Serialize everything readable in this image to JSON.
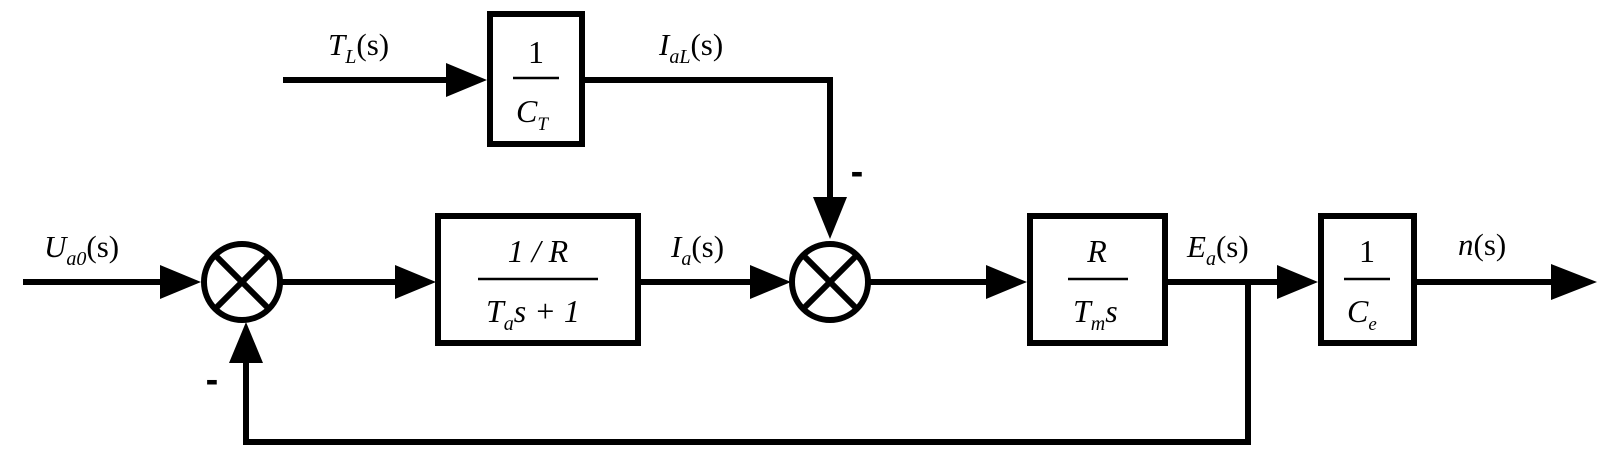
{
  "signals": {
    "input": "U",
    "input_sub": "a0",
    "load_torque": "T",
    "load_torque_sub": "L",
    "load_current": "I",
    "load_current_sub": "aL",
    "armature_current": "I",
    "armature_current_sub": "a",
    "back_emf": "E",
    "back_emf_sub": "a",
    "output": "n",
    "arg": "(s)"
  },
  "blocks": {
    "ct": {
      "num": "1",
      "den": "C",
      "den_sub": "T"
    },
    "armature": {
      "num": "1 / R",
      "den_main": "T",
      "den_sub": "a",
      "den_tail": "s + 1"
    },
    "mechanical": {
      "num": "R",
      "den": "T",
      "den_sub": "m",
      "den_tail": "s"
    },
    "ce": {
      "num": "1",
      "den": "C",
      "den_sub": "e"
    }
  },
  "signs": {
    "feedback": "-",
    "load": "-"
  }
}
